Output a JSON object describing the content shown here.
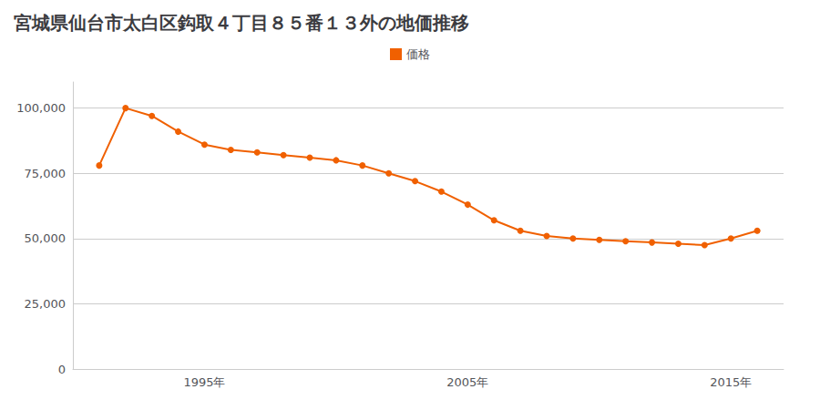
{
  "chart_data": {
    "type": "line",
    "title": "宮城県仙台市太白区鈎取４丁目８５番１３外の地価推移",
    "x": [
      1991,
      1992,
      1993,
      1994,
      1995,
      1996,
      1997,
      1998,
      1999,
      2000,
      2001,
      2002,
      2003,
      2004,
      2005,
      2006,
      2007,
      2008,
      2009,
      2010,
      2011,
      2012,
      2013,
      2014,
      2015,
      2016
    ],
    "series": [
      {
        "name": "価格",
        "color": "#f06000",
        "values": [
          78000,
          100000,
          97000,
          91000,
          86000,
          84000,
          83000,
          82000,
          81000,
          80000,
          78000,
          75000,
          72000,
          68000,
          63000,
          57000,
          53000,
          51000,
          50000,
          49500,
          49000,
          48500,
          48000,
          47500,
          50000,
          53000
        ]
      }
    ],
    "xlim": [
      1990,
      2017
    ],
    "xticks": [
      {
        "value": 1995,
        "label": "1995年"
      },
      {
        "value": 2005,
        "label": "2005年"
      },
      {
        "value": 2015,
        "label": "2015年"
      }
    ],
    "ylim": [
      0,
      110000
    ],
    "yticks": [
      0,
      {
        "value": 25000,
        "label": "25,000"
      },
      {
        "value": 50000,
        "label": "50,000"
      },
      {
        "value": 75000,
        "label": "75,000"
      },
      {
        "value": 100000,
        "label": "100,000"
      }
    ],
    "grid": true,
    "legend": "top",
    "marker": "circle"
  }
}
